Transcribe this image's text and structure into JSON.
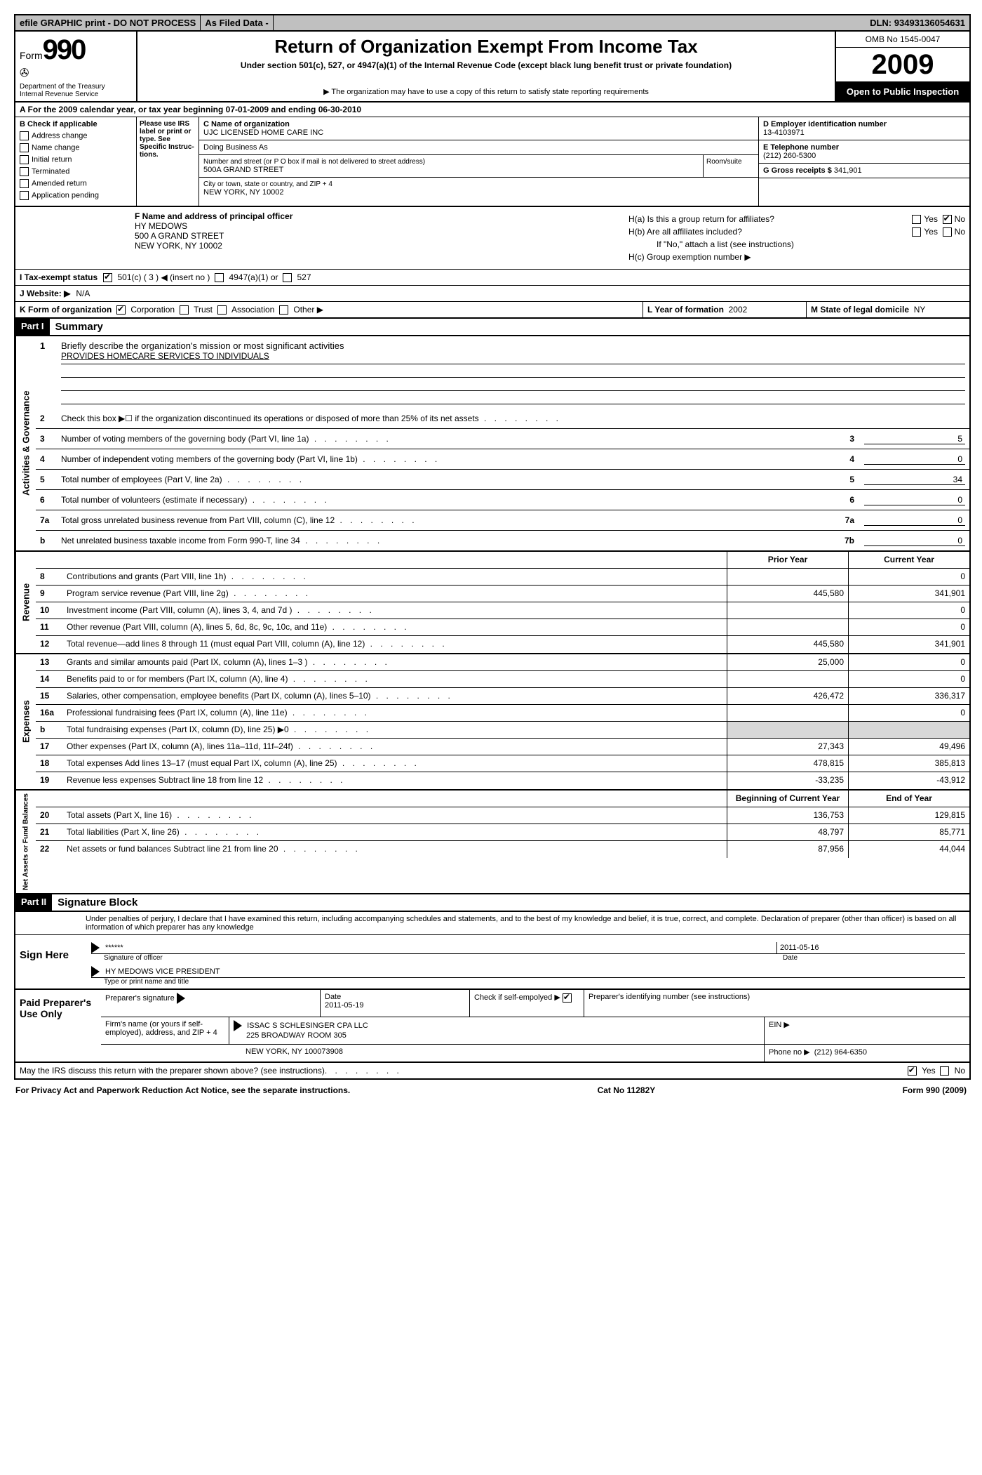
{
  "topbar": {
    "efile": "efile GRAPHIC print - DO NOT PROCESS",
    "asfiled": "As Filed Data -",
    "dln_label": "DLN:",
    "dln": "93493136054631"
  },
  "header": {
    "form_label": "Form",
    "form_number": "990",
    "dept1": "Department of the Treasury",
    "dept2": "Internal Revenue Service",
    "title": "Return of Organization Exempt From Income Tax",
    "subtitle": "Under section 501(c), 527, or 4947(a)(1) of the Internal Revenue Code (except black lung benefit trust or private foundation)",
    "note": "▶ The organization may have to use a copy of this return to satisfy state reporting requirements",
    "omb": "OMB No 1545-0047",
    "year": "2009",
    "inspect": "Open to Public Inspection"
  },
  "rowA": "A  For the 2009  calendar year, or tax year beginning 07-01-2009    and ending 06-30-2010",
  "boxB": {
    "title": "B  Check if applicable",
    "items": [
      "Address change",
      "Name change",
      "Initial return",
      "Terminated",
      "Amended return",
      "Application pending"
    ]
  },
  "irs_note": "Please use IRS label or print or type. See Specific Instruc-tions.",
  "boxC": {
    "name_label": "C Name of organization",
    "name": "UJC LICENSED HOME CARE INC",
    "dba_label": "Doing Business As",
    "dba": "",
    "street_label": "Number and street (or P O  box if mail is not delivered to street address)",
    "room_label": "Room/suite",
    "street": "500A GRAND STREET",
    "city_label": "City or town, state or country, and ZIP + 4",
    "city": "NEW YORK, NY  10002"
  },
  "boxD": {
    "ein_label": "D Employer identification number",
    "ein": "13-4103971",
    "phone_label": "E Telephone number",
    "phone": "(212) 260-5300",
    "gross_label": "G Gross receipts $",
    "gross": "341,901"
  },
  "boxF": {
    "label": "F   Name and address of principal officer",
    "name": "HY MEDOWS",
    "street": "500 A GRAND STREET",
    "city": "NEW YORK, NY  10002"
  },
  "boxH": {
    "ha": "H(a)  Is this a group return for affiliates?",
    "hb": "H(b)  Are all affiliates included?",
    "hb_note": "If \"No,\" attach a list  (see instructions)",
    "hc": "H(c)   Group exemption number ▶",
    "yes": "Yes",
    "no": "No"
  },
  "rowI": {
    "label": "I   Tax-exempt status",
    "opt1": "501(c) ( 3 ) ◀ (insert no )",
    "opt2": "4947(a)(1) or",
    "opt3": "527"
  },
  "rowJ": {
    "label": "J   Website: ▶",
    "val": "N/A"
  },
  "rowK": {
    "label": "K Form of organization",
    "corp": "Corporation",
    "trust": "Trust",
    "assoc": "Association",
    "other": "Other ▶",
    "l_label": "L Year of formation",
    "l_val": "2002",
    "m_label": "M State of legal domicile",
    "m_val": "NY"
  },
  "partI": {
    "header": "Part I",
    "title": "Summary"
  },
  "governance": {
    "label": "Activities & Governance",
    "mission_label": "Briefly describe the organization's mission or most significant activities",
    "mission": "PROVIDES HOMECARE SERVICES TO INDIVIDUALS",
    "lines": [
      {
        "n": "2",
        "d": "Check this box ▶☐ if the organization discontinued its operations or disposed of more than 25% of its net assets"
      },
      {
        "n": "3",
        "d": "Number of voting members of the governing body (Part VI, line 1a)",
        "r": "3",
        "v": "5"
      },
      {
        "n": "4",
        "d": "Number of independent voting members of the governing body (Part VI, line 1b)",
        "r": "4",
        "v": "0"
      },
      {
        "n": "5",
        "d": "Total number of employees (Part V, line 2a)",
        "r": "5",
        "v": "34"
      },
      {
        "n": "6",
        "d": "Total number of volunteers (estimate if necessary)",
        "r": "6",
        "v": "0"
      },
      {
        "n": "7a",
        "d": "Total gross unrelated business revenue from Part VIII, column (C), line 12",
        "r": "7a",
        "v": "0"
      },
      {
        "n": "b",
        "d": "Net unrelated business taxable income from Form 990-T, line 34",
        "r": "7b",
        "v": "0"
      }
    ]
  },
  "fin_headers": {
    "prior": "Prior Year",
    "current": "Current Year",
    "begin": "Beginning of Current Year",
    "end": "End of Year"
  },
  "revenue": {
    "label": "Revenue",
    "rows": [
      {
        "n": "8",
        "d": "Contributions and grants (Part VIII, line 1h)",
        "p": "",
        "c": "0"
      },
      {
        "n": "9",
        "d": "Program service revenue (Part VIII, line 2g)",
        "p": "445,580",
        "c": "341,901"
      },
      {
        "n": "10",
        "d": "Investment income (Part VIII, column (A), lines 3, 4, and 7d )",
        "p": "",
        "c": "0"
      },
      {
        "n": "11",
        "d": "Other revenue (Part VIII, column (A), lines 5, 6d, 8c, 9c, 10c, and 11e)",
        "p": "",
        "c": "0"
      },
      {
        "n": "12",
        "d": "Total revenue—add lines 8 through 11 (must equal Part VIII, column (A), line 12)",
        "p": "445,580",
        "c": "341,901"
      }
    ]
  },
  "expenses": {
    "label": "Expenses",
    "rows": [
      {
        "n": "13",
        "d": "Grants and similar amounts paid (Part IX, column (A), lines 1–3 )",
        "p": "25,000",
        "c": "0"
      },
      {
        "n": "14",
        "d": "Benefits paid to or for members (Part IX, column (A), line 4)",
        "p": "",
        "c": "0"
      },
      {
        "n": "15",
        "d": "Salaries, other compensation, employee benefits (Part IX, column (A), lines 5–10)",
        "p": "426,472",
        "c": "336,317"
      },
      {
        "n": "16a",
        "d": "Professional fundraising fees (Part IX, column (A), line 11e)",
        "p": "",
        "c": "0"
      },
      {
        "n": "b",
        "d": "Total fundraising expenses (Part IX, column (D), line 25) ▶0",
        "p": "shade",
        "c": "shade"
      },
      {
        "n": "17",
        "d": "Other expenses (Part IX, column (A), lines 11a–11d, 11f–24f)",
        "p": "27,343",
        "c": "49,496"
      },
      {
        "n": "18",
        "d": "Total expenses  Add lines 13–17 (must equal Part IX, column (A), line 25)",
        "p": "478,815",
        "c": "385,813"
      },
      {
        "n": "19",
        "d": "Revenue less expenses  Subtract line 18 from line 12",
        "p": "-33,235",
        "c": "-43,912"
      }
    ]
  },
  "netassets": {
    "label": "Net Assets or Fund Balances",
    "rows": [
      {
        "n": "20",
        "d": "Total assets (Part X, line 16)",
        "p": "136,753",
        "c": "129,815"
      },
      {
        "n": "21",
        "d": "Total liabilities (Part X, line 26)",
        "p": "48,797",
        "c": "85,771"
      },
      {
        "n": "22",
        "d": "Net assets or fund balances  Subtract line 21 from line 20",
        "p": "87,956",
        "c": "44,044"
      }
    ]
  },
  "partII": {
    "header": "Part II",
    "title": "Signature Block",
    "perjury": "Under penalties of perjury, I declare that I have examined this return, including accompanying schedules and statements, and to the best of my knowledge and belief, it is true, correct, and complete. Declaration of preparer (other than officer) is based on all information of which preparer has any knowledge"
  },
  "sign": {
    "label": "Sign Here",
    "stars": "******",
    "sig_label": "Signature of officer",
    "date": "2011-05-16",
    "date_label": "Date",
    "name": "HY MEDOWS VICE PRESIDENT",
    "name_label": "Type or print name and title"
  },
  "prep": {
    "label": "Paid Preparer's Use Only",
    "sig_label": "Preparer's signature",
    "date_label": "Date",
    "date": "2011-05-19",
    "check_label": "Check if self-empolyed ▶",
    "pin_label": "Preparer's identifying number (see instructions)",
    "firm_label": "Firm's name (or yours if self-employed), address, and ZIP + 4",
    "firm_name": "ISSAC S SCHLESINGER CPA LLC",
    "firm_addr1": "225 BROADWAY ROOM 305",
    "firm_addr2": "NEW YORK, NY  100073908",
    "ein_label": "EIN ▶",
    "phone_label": "Phone no  ▶",
    "phone": "(212) 964-6350"
  },
  "discuss": "May the IRS discuss this return with the preparer shown above? (see instructions)",
  "footer": {
    "privacy": "For Privacy Act and Paperwork Reduction Act Notice, see the separate instructions.",
    "cat": "Cat  No 11282Y",
    "form": "Form 990 (2009)"
  }
}
